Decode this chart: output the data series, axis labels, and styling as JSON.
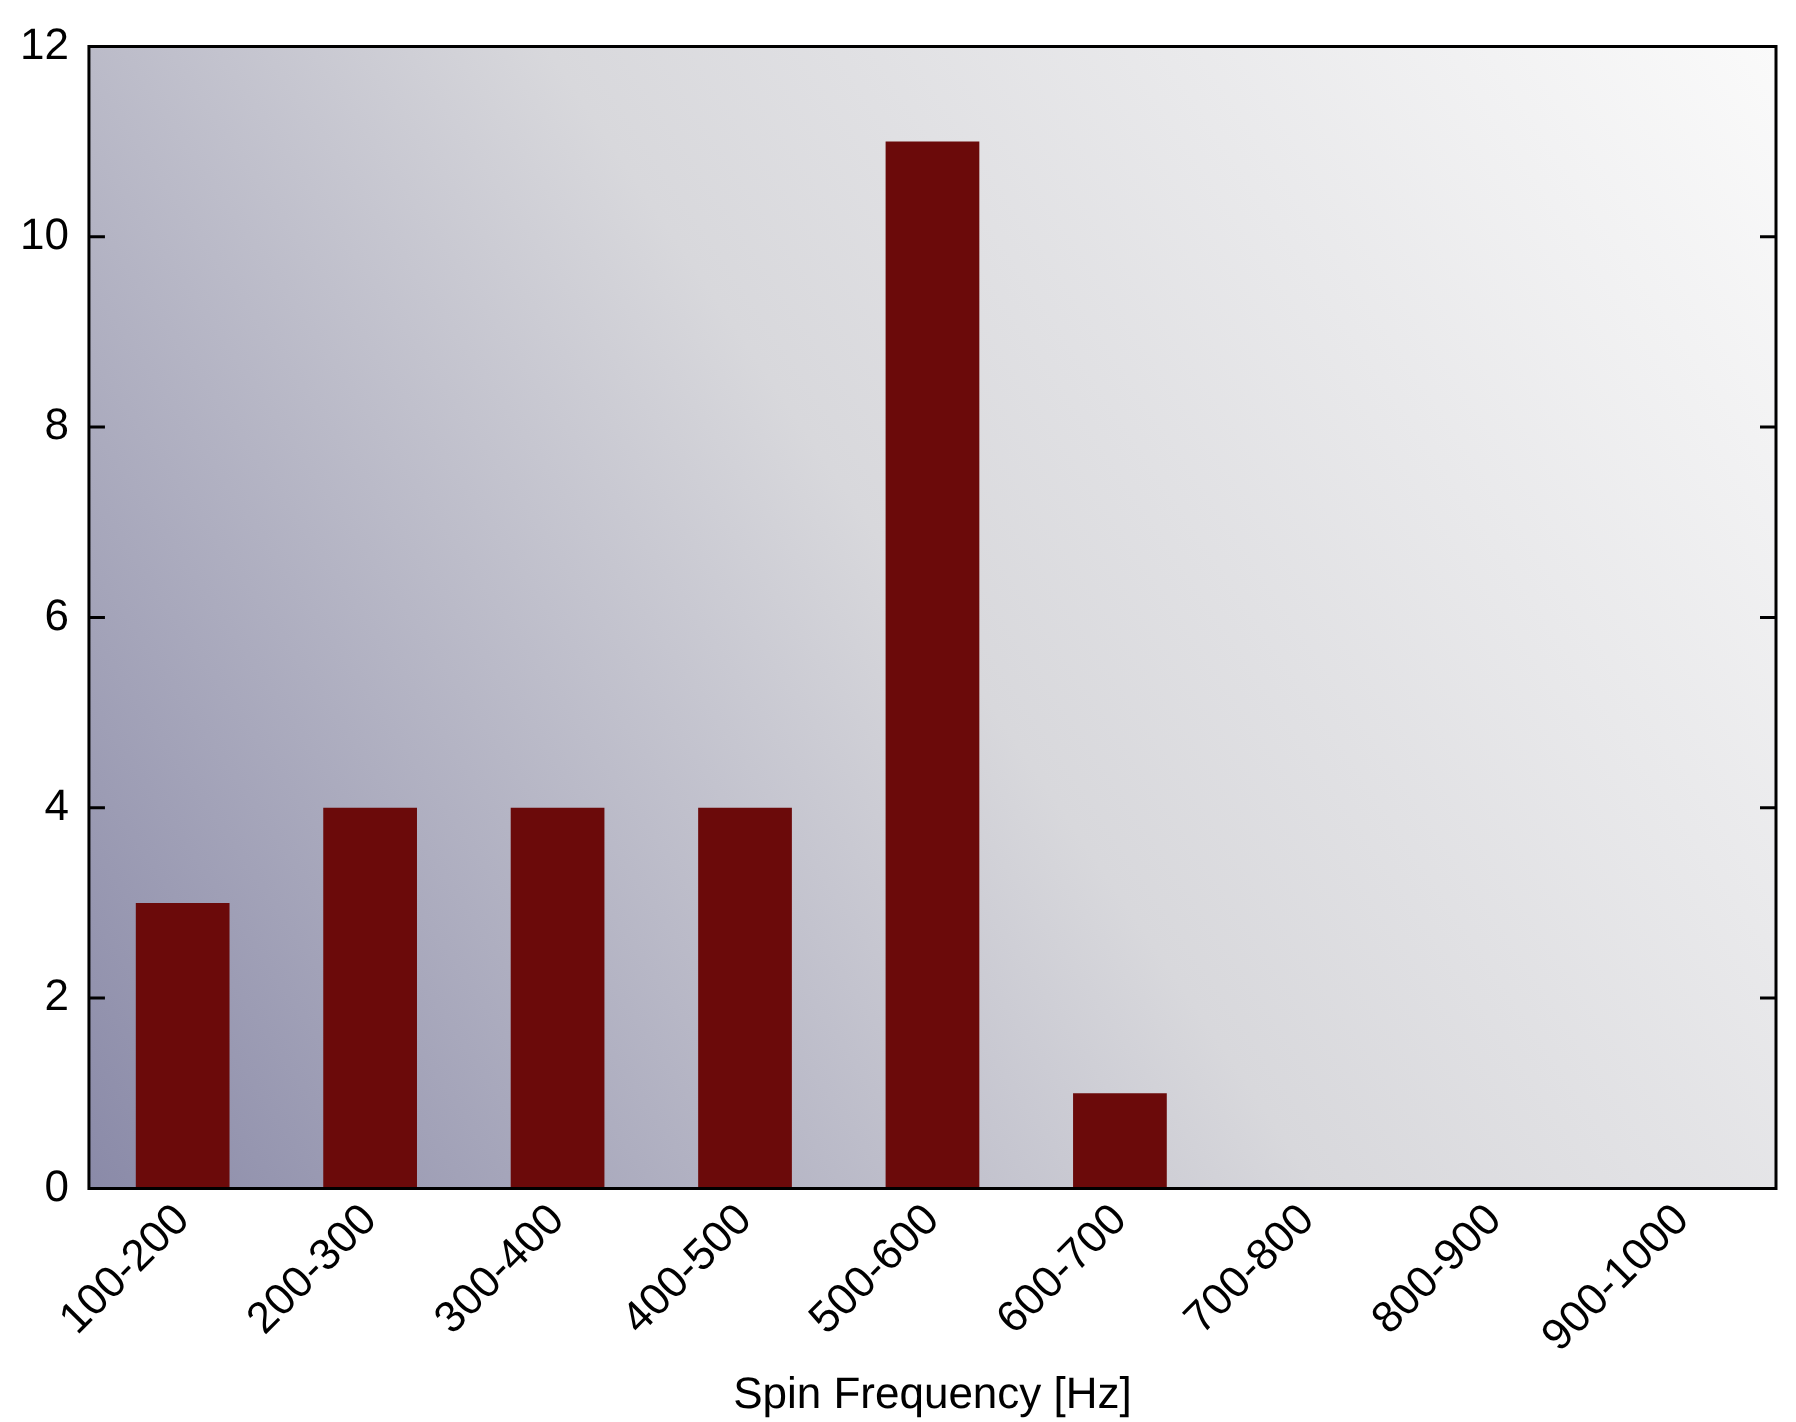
{
  "chart_data": {
    "type": "bar",
    "xlabel": "Spin Frequency [Hz]",
    "categories": [
      "100-200",
      "200-300",
      "300-400",
      "400-500",
      "500-600",
      "600-700",
      "700-800",
      "800-900",
      "900-1000"
    ],
    "values": [
      3,
      4,
      4,
      4,
      11,
      1,
      0,
      0,
      0
    ],
    "color": "#6b0a0a",
    "ylim": [
      0,
      12
    ],
    "yticks": [
      0,
      2,
      4,
      6,
      8,
      10,
      12
    ],
    "grid": false,
    "legend": false
  }
}
